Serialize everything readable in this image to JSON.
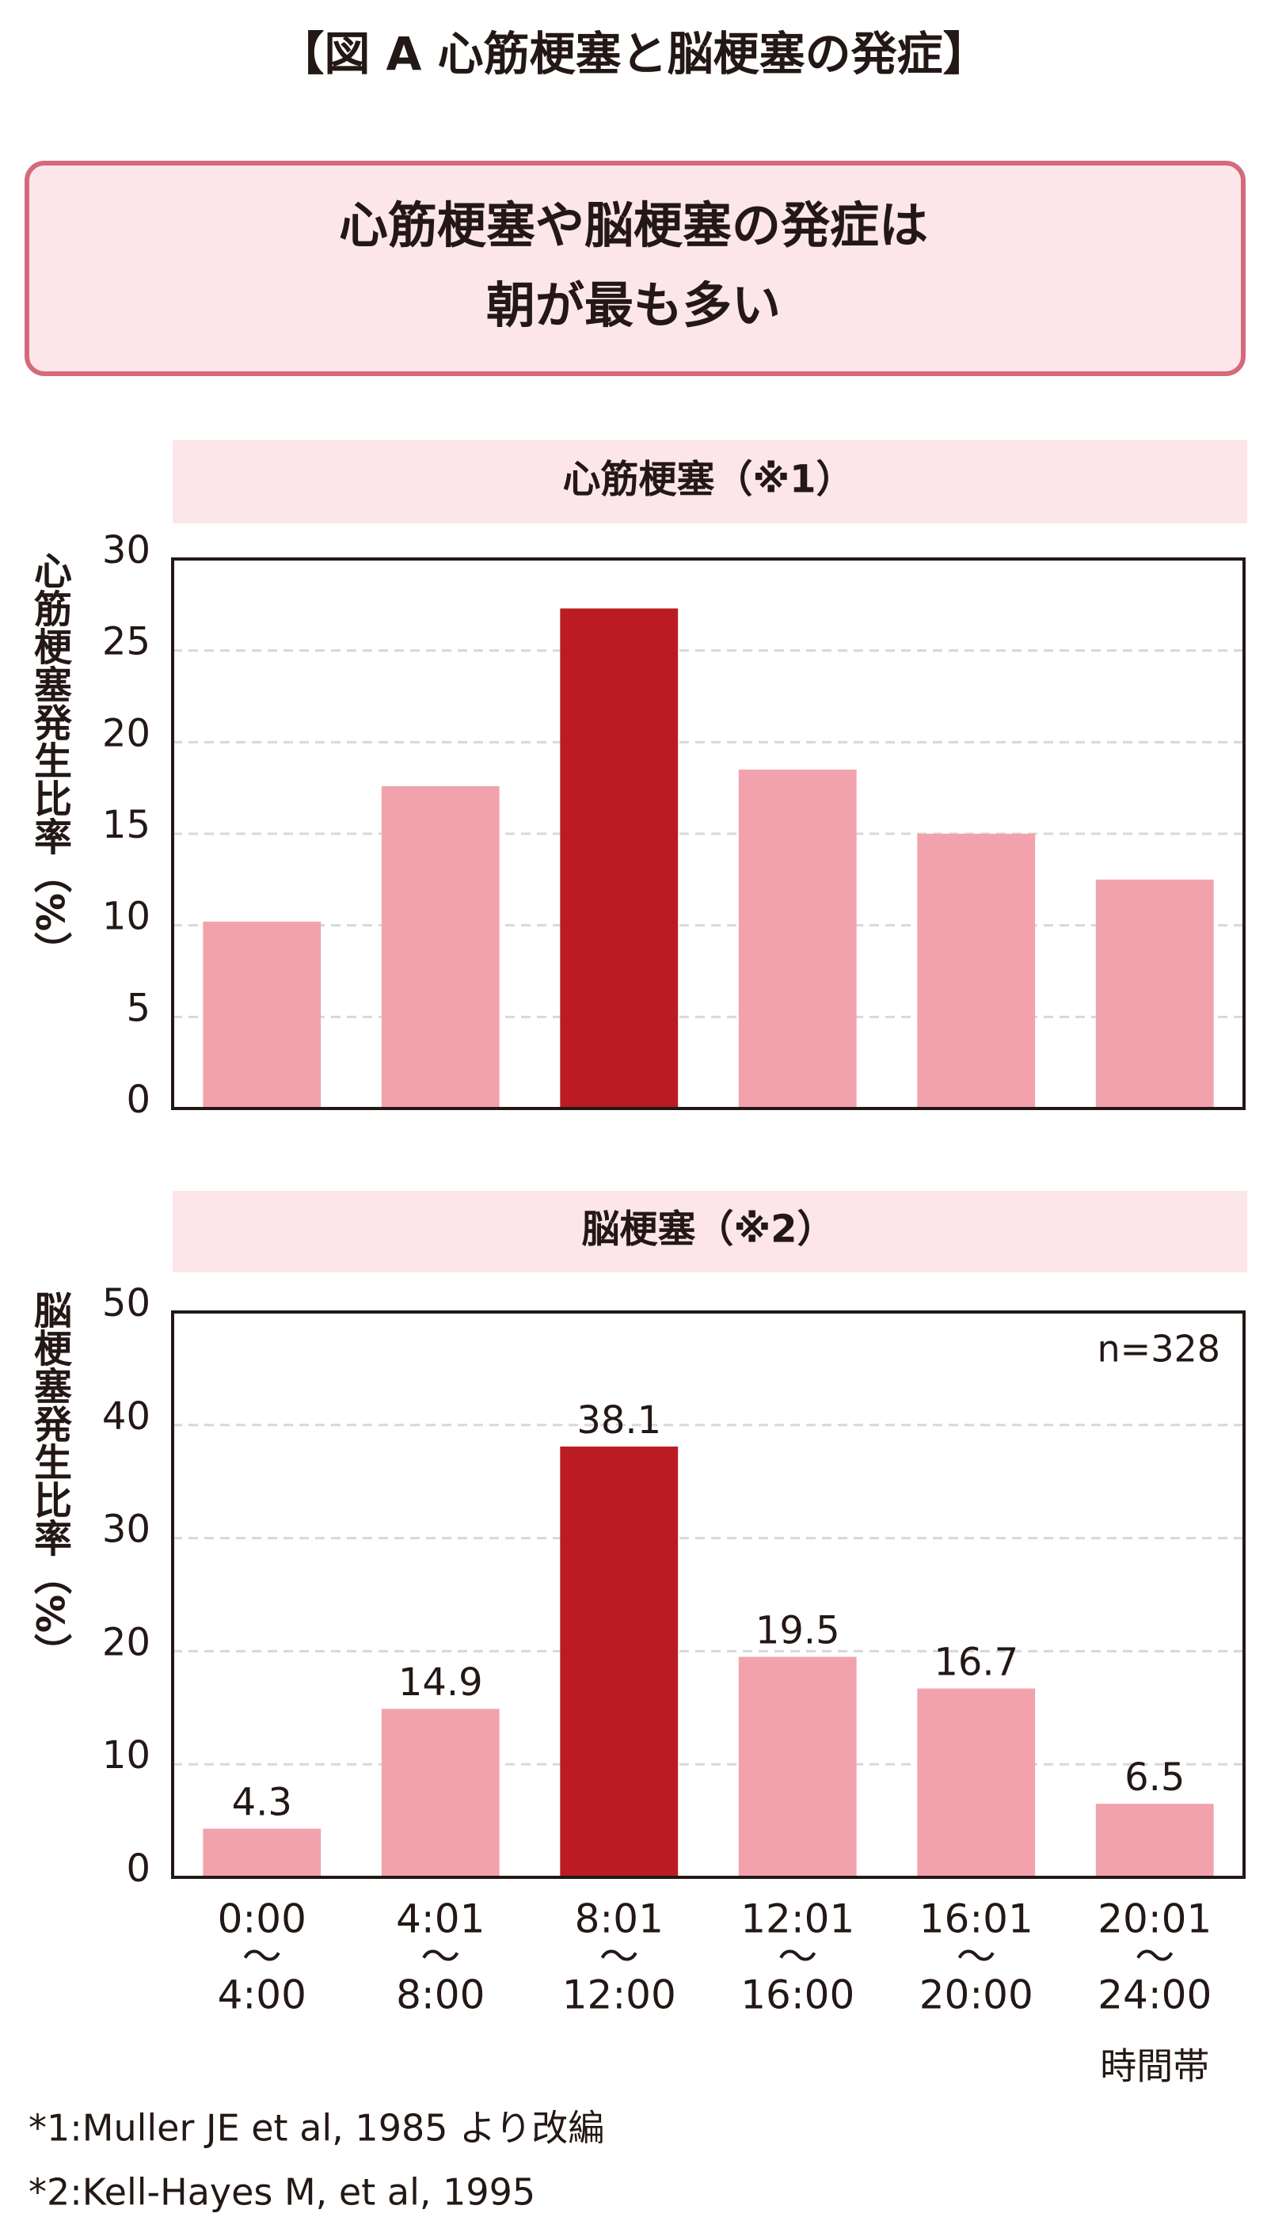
{
  "header": {
    "title": "【図 A 心筋梗塞と脳梗塞の発症】"
  },
  "callout": {
    "lines": [
      "心筋梗塞や脳梗塞の発症は",
      "朝が最も多い"
    ]
  },
  "chart_data": [
    {
      "type": "bar",
      "title": "心筋梗塞（※1）",
      "ylabel": "心筋梗塞発生比率（%）",
      "values": [
        10.2,
        17.6,
        27.3,
        18.5,
        15.0,
        12.5
      ],
      "colors": [
        "#f2a2ac",
        "#f2a2ac",
        "#bb1c23",
        "#f2a2ac",
        "#f2a2ac",
        "#f2a2ac"
      ],
      "ylim": [
        0,
        30
      ],
      "yticks": [
        0,
        5,
        10,
        15,
        20,
        25,
        30
      ],
      "grid": true
    },
    {
      "type": "bar",
      "title": "脳梗塞（※2）",
      "ylabel": "脳梗塞発生比率（%）",
      "categories": [
        [
          "0:00",
          "〜",
          "4:00"
        ],
        [
          "4:01",
          "〜",
          "8:00"
        ],
        [
          "8:01",
          "〜",
          "12:00"
        ],
        [
          "12:01",
          "〜",
          "16:00"
        ],
        [
          "16:01",
          "〜",
          "20:00"
        ],
        [
          "20:01",
          "〜",
          "24:00"
        ]
      ],
      "xlabel": "時間帯",
      "annotation": "n=328",
      "values": [
        4.3,
        14.9,
        38.1,
        19.5,
        16.7,
        6.5
      ],
      "colors": [
        "#f2a2ac",
        "#f2a2ac",
        "#bb1c23",
        "#f2a2ac",
        "#f2a2ac",
        "#f2a2ac"
      ],
      "ylim": [
        0,
        50
      ],
      "yticks": [
        0,
        10,
        20,
        30,
        40,
        50
      ],
      "grid": true,
      "show_values": true
    }
  ],
  "footnotes": [
    "*1:Muller JE et al, 1985 より改編",
    "*2:Kell-Hayes M, et al, 1995"
  ]
}
